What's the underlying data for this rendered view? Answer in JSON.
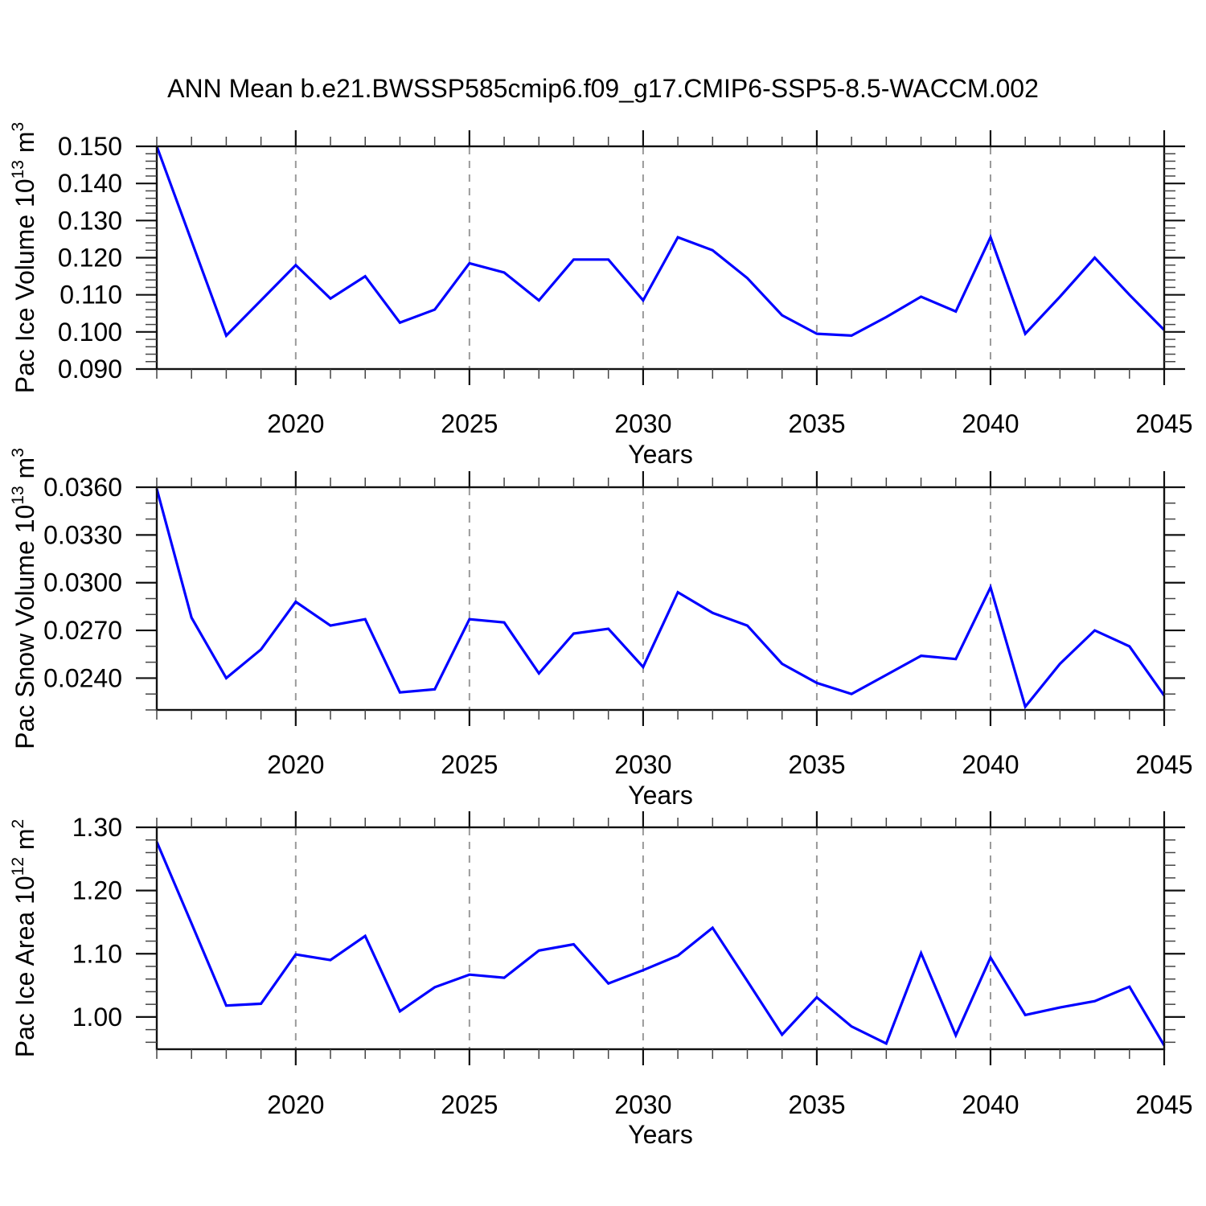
{
  "title": "ANN Mean b.e21.BWSSP585cmip6.f09_g17.CMIP6-SSP5-8.5-WACCM.002",
  "style": {
    "line_color": "#0000ff",
    "grid_color": "#9a9a9a",
    "axis_color": "#111111",
    "text_color": "#000000"
  },
  "chart_data": [
    {
      "type": "line",
      "name": "pac-ice-volume-panel",
      "ylabel": {
        "base": "Pac Ice Volume 10",
        "sup": "13",
        "unit": " m",
        "unit_sup": "3"
      },
      "xlabel": "Years",
      "x": [
        2016,
        2017,
        2018,
        2019,
        2020,
        2021,
        2022,
        2023,
        2024,
        2025,
        2026,
        2027,
        2028,
        2029,
        2030,
        2031,
        2032,
        2033,
        2034,
        2035,
        2036,
        2037,
        2038,
        2039,
        2040,
        2041,
        2042,
        2043,
        2044,
        2045
      ],
      "values": [
        0.15,
        0.1245,
        0.099,
        0.1085,
        0.118,
        0.109,
        0.115,
        0.1025,
        0.106,
        0.1185,
        0.116,
        0.1085,
        0.1195,
        0.1195,
        0.1085,
        0.1255,
        0.122,
        0.1145,
        0.1045,
        0.0995,
        0.099,
        0.104,
        0.1095,
        0.1055,
        0.1255,
        0.0995,
        0.1095,
        0.12,
        0.11,
        0.1005
      ],
      "xlim": [
        2016,
        2045
      ],
      "ylim": [
        0.09,
        0.15
      ],
      "xtick_values": [
        2020,
        2025,
        2030,
        2035,
        2040,
        2045
      ],
      "xtick_labels": [
        "2020",
        "2025",
        "2030",
        "2035",
        "2040",
        "2045"
      ],
      "ytick_values": [
        0.09,
        0.1,
        0.11,
        0.12,
        0.13,
        0.14,
        0.15
      ],
      "ytick_labels": [
        "0.090",
        "0.100",
        "0.110",
        "0.120",
        "0.130",
        "0.140",
        "0.150"
      ],
      "yminor_step": 0.002,
      "grid_x": [
        2020,
        2025,
        2030,
        2035,
        2040
      ],
      "grid_on": true,
      "legend": null
    },
    {
      "type": "line",
      "name": "pac-snow-volume-panel",
      "ylabel": {
        "base": "Pac Snow Volume 10",
        "sup": "13",
        "unit": " m",
        "unit_sup": "3"
      },
      "xlabel": "Years",
      "x": [
        2016,
        2017,
        2018,
        2019,
        2020,
        2021,
        2022,
        2023,
        2024,
        2025,
        2026,
        2027,
        2028,
        2029,
        2030,
        2031,
        2032,
        2033,
        2034,
        2035,
        2036,
        2037,
        2038,
        2039,
        2040,
        2041,
        2042,
        2043,
        2044,
        2045
      ],
      "values": [
        0.0359,
        0.0278,
        0.024,
        0.0258,
        0.0288,
        0.0273,
        0.0277,
        0.0231,
        0.0233,
        0.0277,
        0.0275,
        0.0243,
        0.0268,
        0.0271,
        0.0247,
        0.0294,
        0.0281,
        0.0273,
        0.0249,
        0.0237,
        0.023,
        0.0242,
        0.0254,
        0.0252,
        0.0297,
        0.0222,
        0.0249,
        0.027,
        0.026,
        0.0229
      ],
      "xlim": [
        2016,
        2045
      ],
      "ylim": [
        0.022,
        0.036
      ],
      "xtick_values": [
        2020,
        2025,
        2030,
        2035,
        2040,
        2045
      ],
      "xtick_labels": [
        "2020",
        "2025",
        "2030",
        "2035",
        "2040",
        "2045"
      ],
      "ytick_values": [
        0.024,
        0.027,
        0.03,
        0.033,
        0.036
      ],
      "ytick_labels": [
        "0.0240",
        "0.0270",
        "0.0300",
        "0.0330",
        "0.0360"
      ],
      "yminor_step": 0.001,
      "grid_x": [
        2020,
        2025,
        2030,
        2035,
        2040
      ],
      "grid_on": true,
      "legend": null
    },
    {
      "type": "line",
      "name": "pac-ice-area-panel",
      "ylabel": {
        "base": "Pac Ice Area 10",
        "sup": "12",
        "unit": " m",
        "unit_sup": "2"
      },
      "xlabel": "Years",
      "x": [
        2016,
        2017,
        2018,
        2019,
        2020,
        2021,
        2022,
        2023,
        2024,
        2025,
        2026,
        2027,
        2028,
        2029,
        2030,
        2031,
        2032,
        2033,
        2034,
        2035,
        2036,
        2037,
        2038,
        2039,
        2040,
        2041,
        2042,
        2043,
        2044,
        2045
      ],
      "values": [
        1.277,
        1.148,
        1.018,
        1.021,
        1.099,
        1.09,
        1.128,
        1.009,
        1.047,
        1.067,
        1.062,
        1.105,
        1.115,
        1.053,
        1.074,
        1.097,
        1.141,
        1.057,
        0.972,
        1.031,
        0.985,
        0.958,
        1.101,
        0.971,
        1.094,
        1.003,
        1.015,
        1.025,
        1.048,
        0.955
      ],
      "xlim": [
        2016,
        2045
      ],
      "ylim": [
        0.949,
        1.3
      ],
      "xtick_values": [
        2020,
        2025,
        2030,
        2035,
        2040,
        2045
      ],
      "xtick_labels": [
        "2020",
        "2025",
        "2030",
        "2035",
        "2040",
        "2045"
      ],
      "ytick_values": [
        1.0,
        1.1,
        1.2,
        1.3
      ],
      "ytick_labels": [
        "1.00",
        "1.10",
        "1.20",
        "1.30"
      ],
      "yminor_step": 0.02,
      "grid_x": [
        2020,
        2025,
        2030,
        2035,
        2040
      ],
      "grid_on": true,
      "legend": null
    }
  ]
}
